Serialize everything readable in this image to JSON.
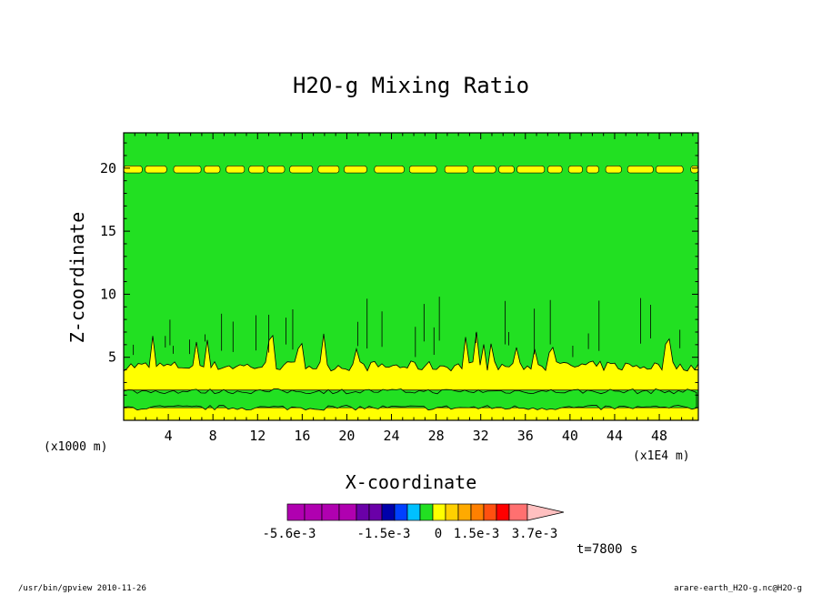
{
  "chart_data": {
    "type": "contour",
    "title": "H2O-g Mixing Ratio",
    "xlabel": "X-coordinate",
    "ylabel": "Z-coordinate",
    "x_unit": "(x1E4 m)",
    "z_unit": "(x1000 m)",
    "xlim": [
      0,
      51.5
    ],
    "ylim": [
      0,
      22.8
    ],
    "x_ticks": [
      "4",
      "8",
      "12",
      "16",
      "20",
      "24",
      "28",
      "32",
      "36",
      "40",
      "44",
      "48"
    ],
    "y_ticks": [
      "5",
      "10",
      "15",
      "20"
    ],
    "x_tick_values": [
      4,
      8,
      12,
      16,
      20,
      24,
      28,
      32,
      36,
      40,
      44,
      48
    ],
    "y_tick_values": [
      5,
      10,
      15,
      20
    ],
    "background_level_color": "#22e022",
    "bands": [
      {
        "name": "upper-layer",
        "z_center": 19.9,
        "half_thickness": 0.28,
        "color": "#ffff00"
      },
      {
        "name": "mid-layer",
        "z_bottom": 2.4,
        "z_top": 4.3,
        "color": "#ffff00"
      },
      {
        "name": "low-layer",
        "z_bottom": 1.0,
        "z_top": 2.3,
        "color": "#22e022"
      },
      {
        "name": "surface-layer",
        "z_bottom": 0.0,
        "z_top": 1.0,
        "color": "#ffff00"
      }
    ],
    "colorbar": {
      "colors": [
        "#b000b0",
        "#b000b0",
        "#b000b0",
        "#b000b0",
        "#6a00a8",
        "#6a00a8",
        "#0000aa",
        "#0040ff",
        "#00c0ff",
        "#22e022",
        "#ffff00",
        "#ffd000",
        "#ffaa00",
        "#ff8000",
        "#ff5010",
        "#ff0000",
        "#ff7070",
        "#ffc0c0"
      ],
      "tick_labels": [
        "-5.6e-3",
        "-1.5e-3",
        "0",
        "1.5e-3",
        "3.7e-3"
      ]
    },
    "time_label": "t=7800 s"
  },
  "footer": {
    "left": "/usr/bin/gpview  2010-11-26",
    "right": "arare-earth_H2O-g.nc@H2O-g"
  }
}
